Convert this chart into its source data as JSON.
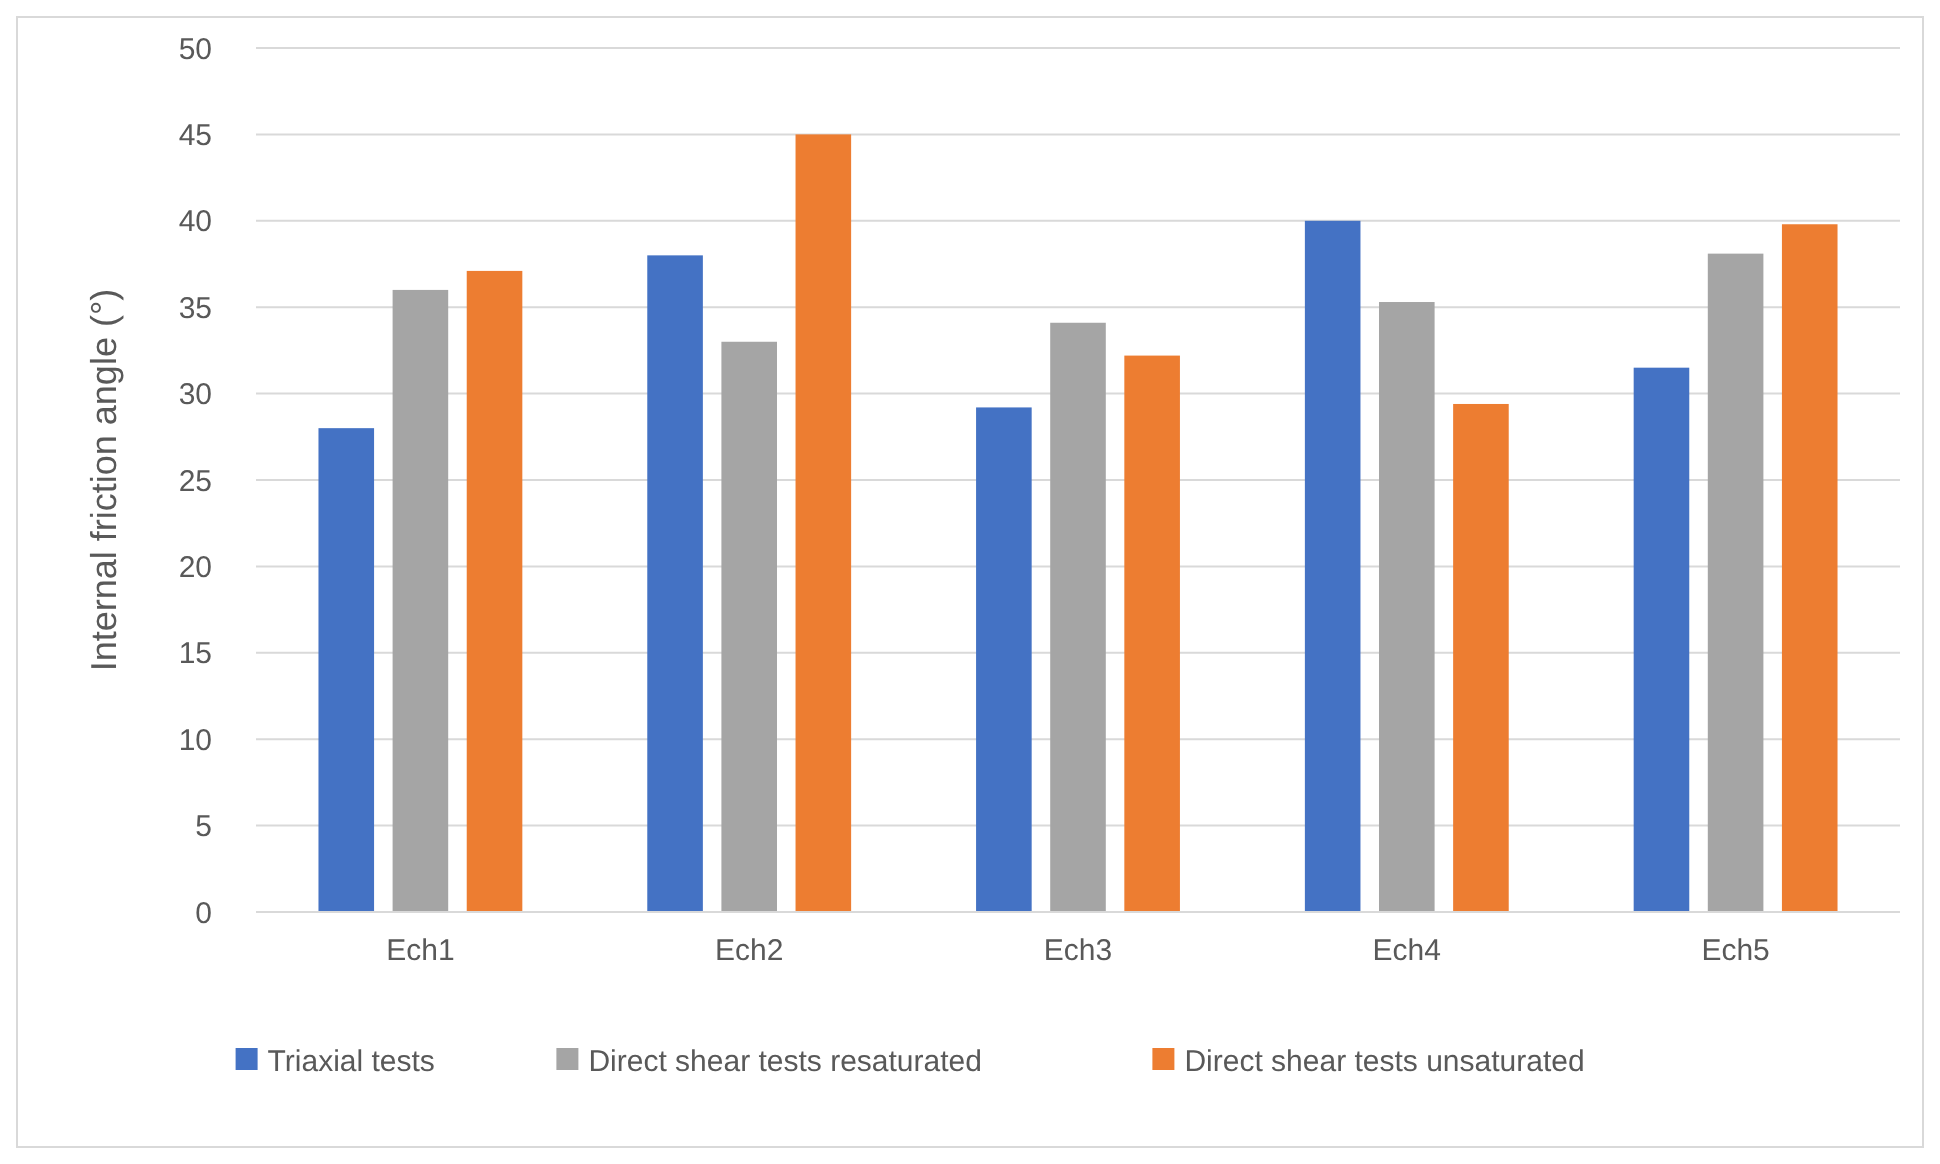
{
  "chart_data": {
    "type": "bar",
    "ylabel": "Internal friction angle (°)",
    "categories": [
      "Ech1",
      "Ech2",
      "Ech3",
      "Ech4",
      "Ech5"
    ],
    "series": [
      {
        "name": "Triaxial tests",
        "color": "#4472c4",
        "values": [
          28,
          38,
          29.2,
          40,
          31.5
        ]
      },
      {
        "name": "Direct shear tests resaturated",
        "color": "#a5a5a5",
        "values": [
          36,
          33,
          34.1,
          35.3,
          38.1
        ]
      },
      {
        "name": "Direct shear tests unsaturated",
        "color": "#ed7d31",
        "values": [
          37.1,
          45,
          32.2,
          29.4,
          39.8
        ]
      }
    ],
    "ylim": [
      0,
      50
    ],
    "yticks": [
      0,
      5,
      10,
      15,
      20,
      25,
      30,
      35,
      40,
      45,
      50
    ],
    "grid": "y",
    "legend": "bottom"
  }
}
